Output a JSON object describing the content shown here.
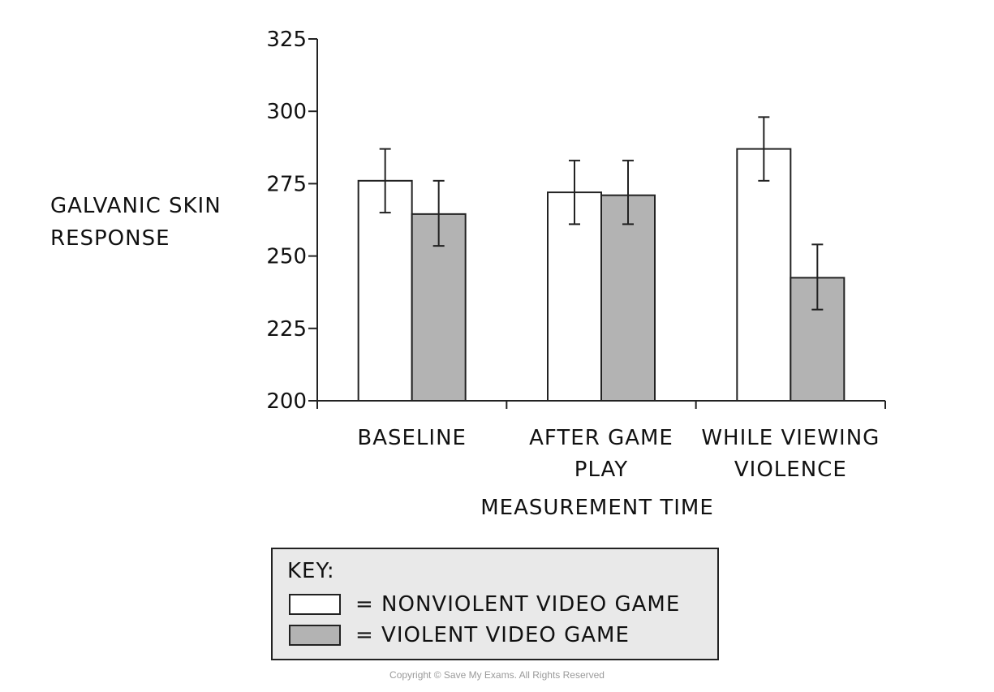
{
  "chart_data": {
    "type": "bar",
    "title": "",
    "xlabel": "MEASUREMENT TIME",
    "ylabel": [
      "GALVANIC SKIN",
      "RESPONSE"
    ],
    "ylim": [
      200,
      325
    ],
    "yticks": [
      200,
      225,
      250,
      275,
      300,
      325
    ],
    "categories": [
      [
        "BASELINE"
      ],
      [
        "AFTER GAME",
        "PLAY"
      ],
      [
        "WHILE VIEWING",
        "VIOLENCE"
      ]
    ],
    "series": [
      {
        "name": "NONVIOLENT VIDEO GAME",
        "color": "#ffffff",
        "values": [
          276,
          272,
          287
        ],
        "error_low": [
          265,
          261,
          276
        ],
        "error_high": [
          287,
          283,
          298
        ]
      },
      {
        "name": "VIOLENT VIDEO GAME",
        "color": "#b3b3b3",
        "values": [
          264.5,
          271,
          242.5
        ],
        "error_low": [
          253.5,
          261,
          231.5
        ],
        "error_high": [
          276,
          283,
          254
        ]
      }
    ],
    "grid": false,
    "legend_position": "bottom"
  },
  "legend": {
    "title": "KEY:",
    "items": [
      {
        "label": "= NONVIOLENT VIDEO GAME",
        "color": "#ffffff"
      },
      {
        "label": "= VIOLENT VIDEO GAME",
        "color": "#b3b3b3"
      }
    ]
  },
  "footer": {
    "copyright": "Copyright © Save My Exams. All Rights Reserved"
  }
}
